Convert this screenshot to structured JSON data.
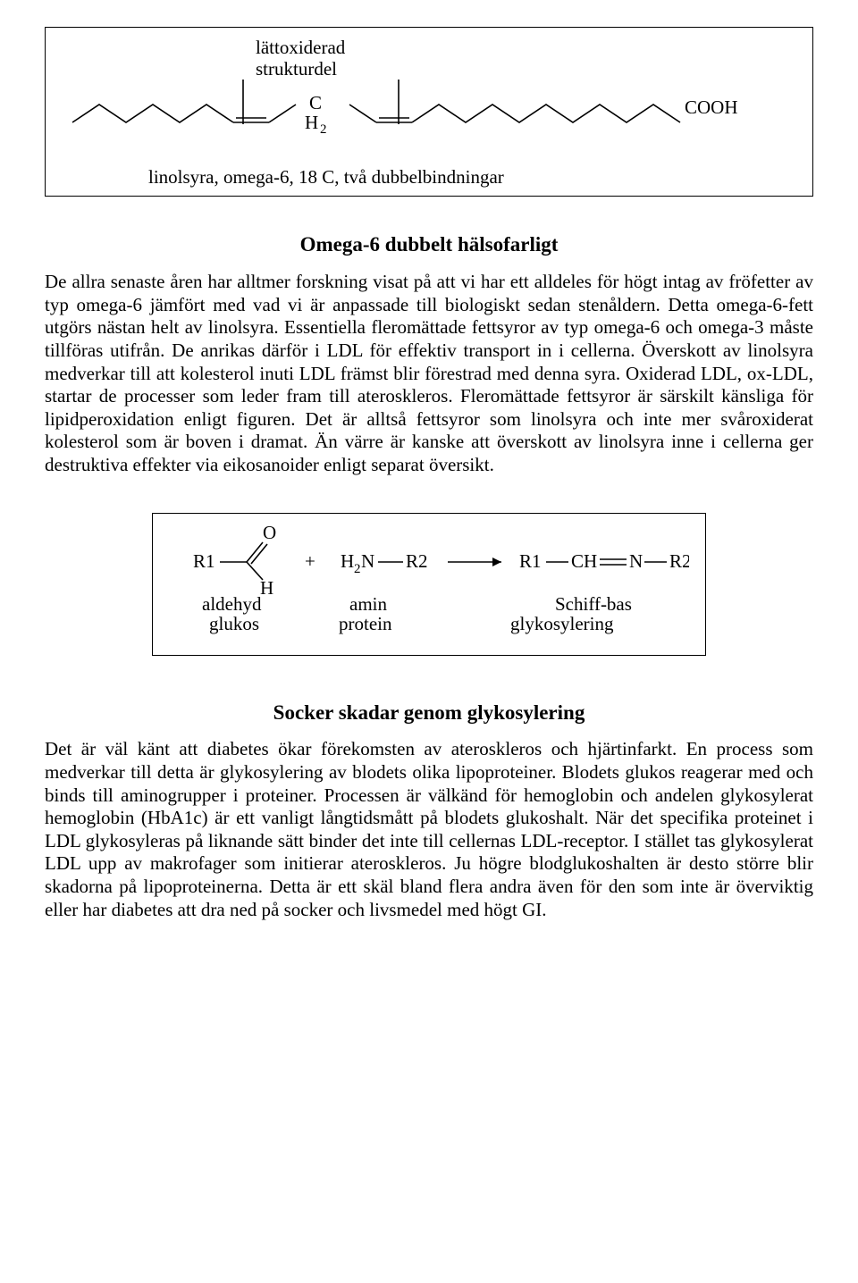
{
  "figure1": {
    "label_line1": "lättoxiderad",
    "label_line2": "strukturdel",
    "caption": "linolsyra, omega-6, 18 C, två dubbelbindningar",
    "ch2_c": "C",
    "ch2_h": "H",
    "ch2_sub": "2",
    "cooh": "COOH",
    "box_border_color": "#000000",
    "line_color": "#000000",
    "line_width": 1.6,
    "fontsize": 21
  },
  "section1_title": "Omega-6 dubbelt hälsofarligt",
  "para1": "De allra senaste åren har alltmer forskning visat på att vi har ett alldeles för högt intag av fröfetter av typ omega-6 jämfört med vad vi är anpassade till biologiskt sedan stenåldern. Detta omega-6-fett utgörs nästan helt av linolsyra. Essentiella fleromättade fettsyror av typ omega-6 och omega-3 måste tillföras utifrån. De anrikas därför i LDL för effektiv transport in i cellerna. Överskott av linolsyra medverkar till att kolesterol inuti LDL främst blir förestrad med denna syra. Oxiderad LDL, ox-LDL, startar de processer som leder fram till ateroskleros. Fleromättade fettsyror är särskilt känsliga för lipidperoxidation enligt figuren. Det är alltså fettsyror som linolsyra och inte mer svåroxiderat kolesterol som är boven i dramat. Än värre är kanske att överskott av linolsyra inne i cellerna ger destruktiva effekter via eikosanoider enligt separat översikt.",
  "figure2": {
    "r1": "R1",
    "plus": "+",
    "h2n": "H",
    "h2n_sub": "2",
    "h2n_n": "N",
    "r2": "R2",
    "ch": "CH",
    "n": "N",
    "o": "O",
    "h": "H",
    "row1_a": "aldehyd",
    "row1_b": "amin",
    "row1_c": "Schiff-bas",
    "row2_a": "glukos",
    "row2_b": "protein",
    "row2_c": "glykosylering",
    "box_border_color": "#000000",
    "line_color": "#000000",
    "line_width": 1.6,
    "fontsize": 21
  },
  "section2_title": "Socker skadar genom glykosylering",
  "para2": "Det är väl känt att diabetes ökar förekomsten av ateroskleros och hjärtinfarkt. En process som medverkar till detta är glykosylering av blodets olika lipoproteiner. Blodets glukos reagerar med och binds till aminogrupper i proteiner. Processen är välkänd för hemoglobin och andelen glykosylerat hemoglobin (HbA1c) är ett vanligt långtidsmått på blodets glukoshalt. När det specifika proteinet i LDL glykosyleras på liknande sätt binder det inte till cellernas LDL-receptor. I stället tas glykosylerat LDL upp av makrofager som initierar ateroskleros. Ju högre blodglukoshalten är desto större blir skadorna på lipoproteinerna. Detta är ett skäl bland flera andra även för den som inte är överviktig eller har diabetes att dra ned på socker och livsmedel med högt GI."
}
